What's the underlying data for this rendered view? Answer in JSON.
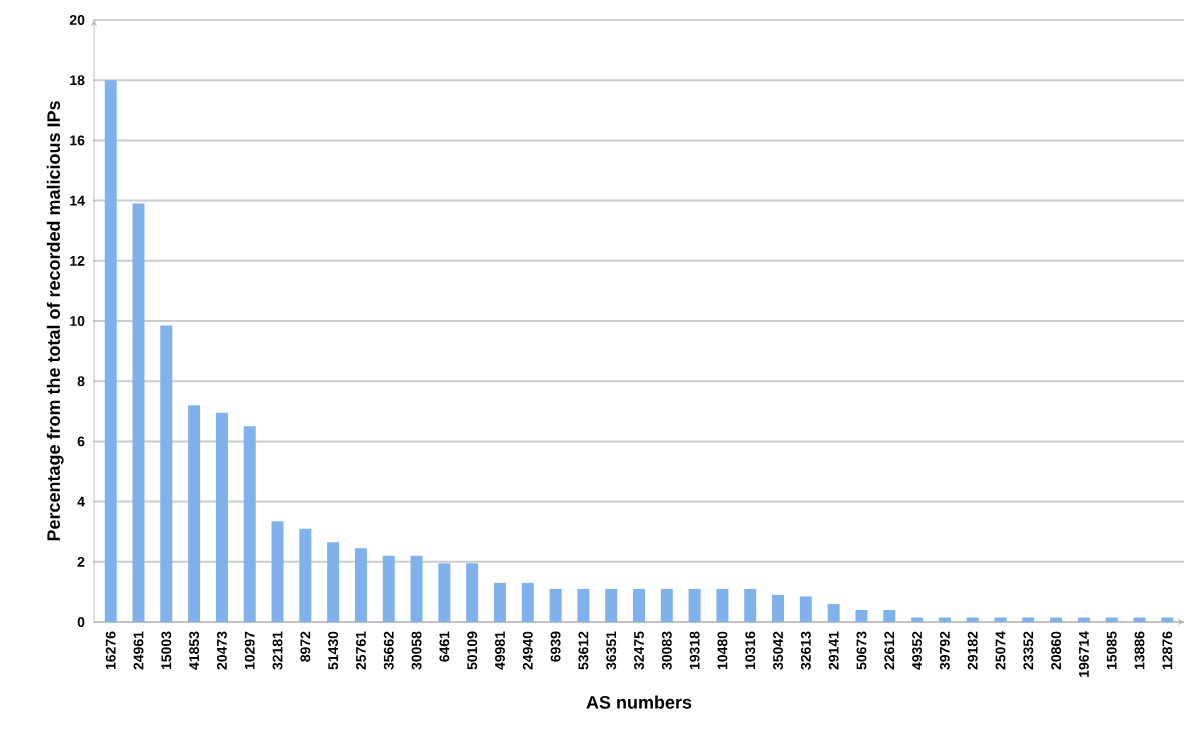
{
  "chart_data": {
    "type": "bar",
    "xlabel": "AS numbers",
    "ylabel": "Percentage from the total of recorded malicious IPs",
    "categories": [
      "16276",
      "24961",
      "15003",
      "41853",
      "20473",
      "10297",
      "32181",
      "8972",
      "51430",
      "25761",
      "35662",
      "30058",
      "6461",
      "50109",
      "49981",
      "24940",
      "6939",
      "53612",
      "36351",
      "32475",
      "30083",
      "19318",
      "10480",
      "10316",
      "35042",
      "32613",
      "29141",
      "50673",
      "22612",
      "49352",
      "39792",
      "29182",
      "25074",
      "23352",
      "20860",
      "196714",
      "15085",
      "13886",
      "12876"
    ],
    "values": [
      18,
      13.9,
      9.85,
      7.2,
      6.95,
      6.5,
      3.35,
      3.1,
      2.65,
      2.45,
      2.2,
      2.2,
      1.95,
      1.95,
      1.3,
      1.3,
      1.1,
      1.1,
      1.1,
      1.1,
      1.1,
      1.1,
      1.1,
      1.1,
      0.9,
      0.85,
      0.6,
      0.4,
      0.4,
      0.15,
      0.15,
      0.15,
      0.15,
      0.15,
      0.15,
      0.15,
      0.15,
      0.15,
      0.15
    ],
    "color": "#7fb2ea",
    "ylim": [
      0,
      20
    ],
    "yticks": [
      0,
      2,
      4,
      6,
      8,
      10,
      12,
      14,
      16,
      18,
      20
    ],
    "grid": "y"
  }
}
